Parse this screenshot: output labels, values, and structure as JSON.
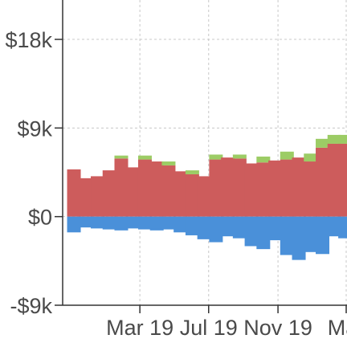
{
  "chart_data": {
    "type": "bar",
    "stacked": true,
    "title": "",
    "xlabel": "",
    "ylabel": "",
    "ylim": [
      -9000,
      22000
    ],
    "grid": true,
    "legend": "none",
    "y_ticks": [
      {
        "value": -9000,
        "label": "-$9k"
      },
      {
        "value": 0,
        "label": "$0"
      },
      {
        "value": 9000,
        "label": "$9k"
      },
      {
        "value": 18000,
        "label": "$18k"
      }
    ],
    "x_ticks": [
      {
        "date": "2019-03-01",
        "label": "Mar 19"
      },
      {
        "date": "2019-07-01",
        "label": "Jul 19"
      },
      {
        "date": "2019-11-01",
        "label": "Nov 19"
      },
      {
        "date": "2020-03-01",
        "label": "Mar"
      }
    ],
    "xlim": [
      "2018-10-15",
      "2020-03-01"
    ],
    "x": [
      "2018-11-04",
      "2018-11-25",
      "2018-12-16",
      "2019-01-06",
      "2019-01-27",
      "2019-02-17",
      "2019-03-10",
      "2019-03-31",
      "2019-04-21",
      "2019-05-12",
      "2019-06-02",
      "2019-06-23",
      "2019-07-14",
      "2019-08-04",
      "2019-08-25",
      "2019-09-15",
      "2019-10-06",
      "2019-10-27",
      "2019-11-17",
      "2019-12-08",
      "2019-12-29",
      "2020-01-19",
      "2020-02-09",
      "2020-02-28"
    ],
    "colors": {
      "red": "#cd5c5c",
      "green": "#9ccc65",
      "blue": "#4a90d9"
    },
    "series": [
      {
        "color": "red",
        "values": [
          4800,
          3900,
          4100,
          4700,
          5900,
          5000,
          5800,
          5600,
          5200,
          4600,
          4300,
          4100,
          5800,
          6000,
          5900,
          5400,
          5500,
          5700,
          5800,
          6000,
          5600,
          7000,
          7400,
          7400
        ]
      },
      {
        "color": "green",
        "values": [
          0,
          0,
          0,
          0,
          300,
          0,
          400,
          0,
          400,
          0,
          400,
          0,
          500,
          0,
          400,
          0,
          600,
          0,
          800,
          0,
          800,
          900,
          900,
          900
        ]
      },
      {
        "color": "blue",
        "values": [
          -1600,
          -1100,
          -1200,
          -1300,
          -1400,
          -1200,
          -1300,
          -1400,
          -1300,
          -1600,
          -1900,
          -2300,
          -2600,
          -2000,
          -2200,
          -3000,
          -3300,
          -2400,
          -3900,
          -4400,
          -3600,
          -3800,
          -2000,
          -2200
        ]
      }
    ]
  }
}
